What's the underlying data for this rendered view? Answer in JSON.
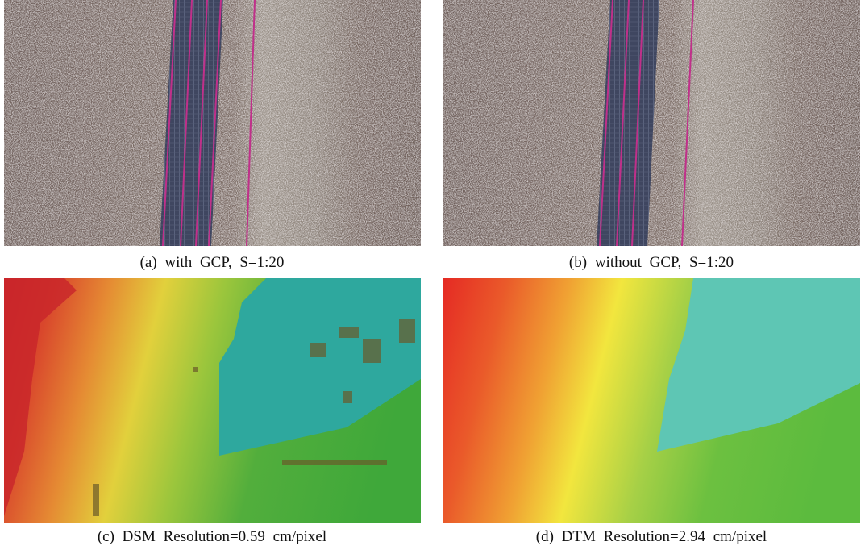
{
  "figure": {
    "panels": [
      {
        "caption": "(a) with GCP, S=1:20"
      },
      {
        "caption": "(b) without GCP, S=1:20"
      },
      {
        "caption": "(c) DSM Resolution=0.59 cm/pixel"
      },
      {
        "caption": "(d) DTM Resolution=2.94 cm/pixel"
      }
    ]
  }
}
